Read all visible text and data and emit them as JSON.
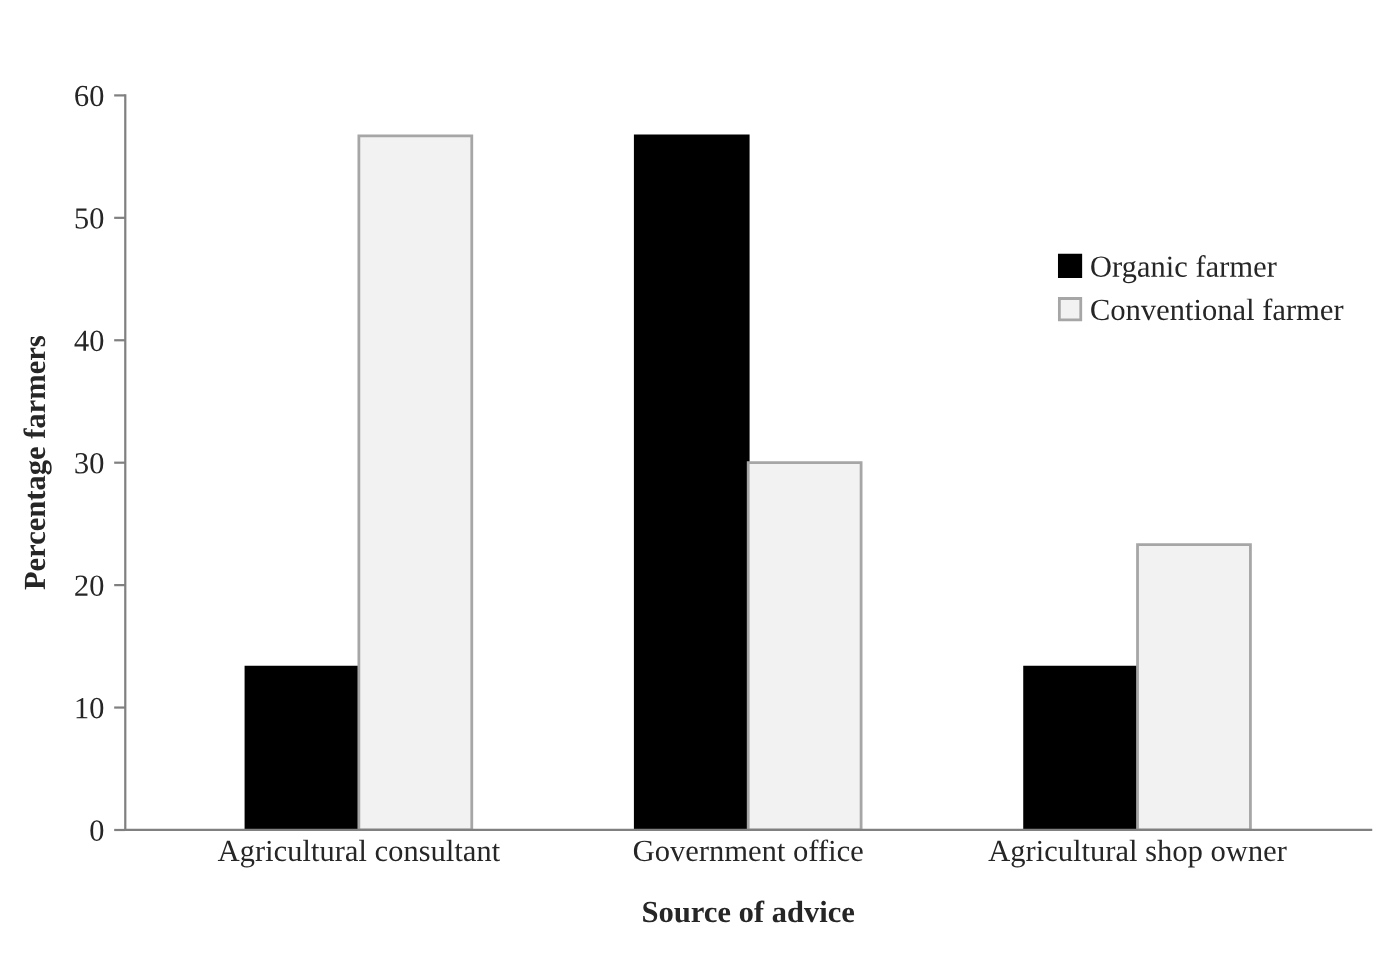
{
  "chart_data": {
    "type": "bar",
    "xlabel": "Source of advice",
    "ylabel": "Percentage farmers",
    "categories": [
      "Agricultural consultant",
      "Government office",
      "Agricultural shop owner"
    ],
    "series": [
      {
        "name": "Organic farmer",
        "color": "#000000",
        "values": [
          13.3,
          56.7,
          13.3
        ]
      },
      {
        "name": "Conventional farmer",
        "color": "#f2f2f2",
        "values": [
          56.7,
          30,
          23.3
        ]
      }
    ],
    "ylim": [
      0,
      60
    ],
    "yticks": [
      0,
      10,
      20,
      30,
      40,
      50,
      60
    ],
    "grid": false,
    "legend": "top right"
  }
}
